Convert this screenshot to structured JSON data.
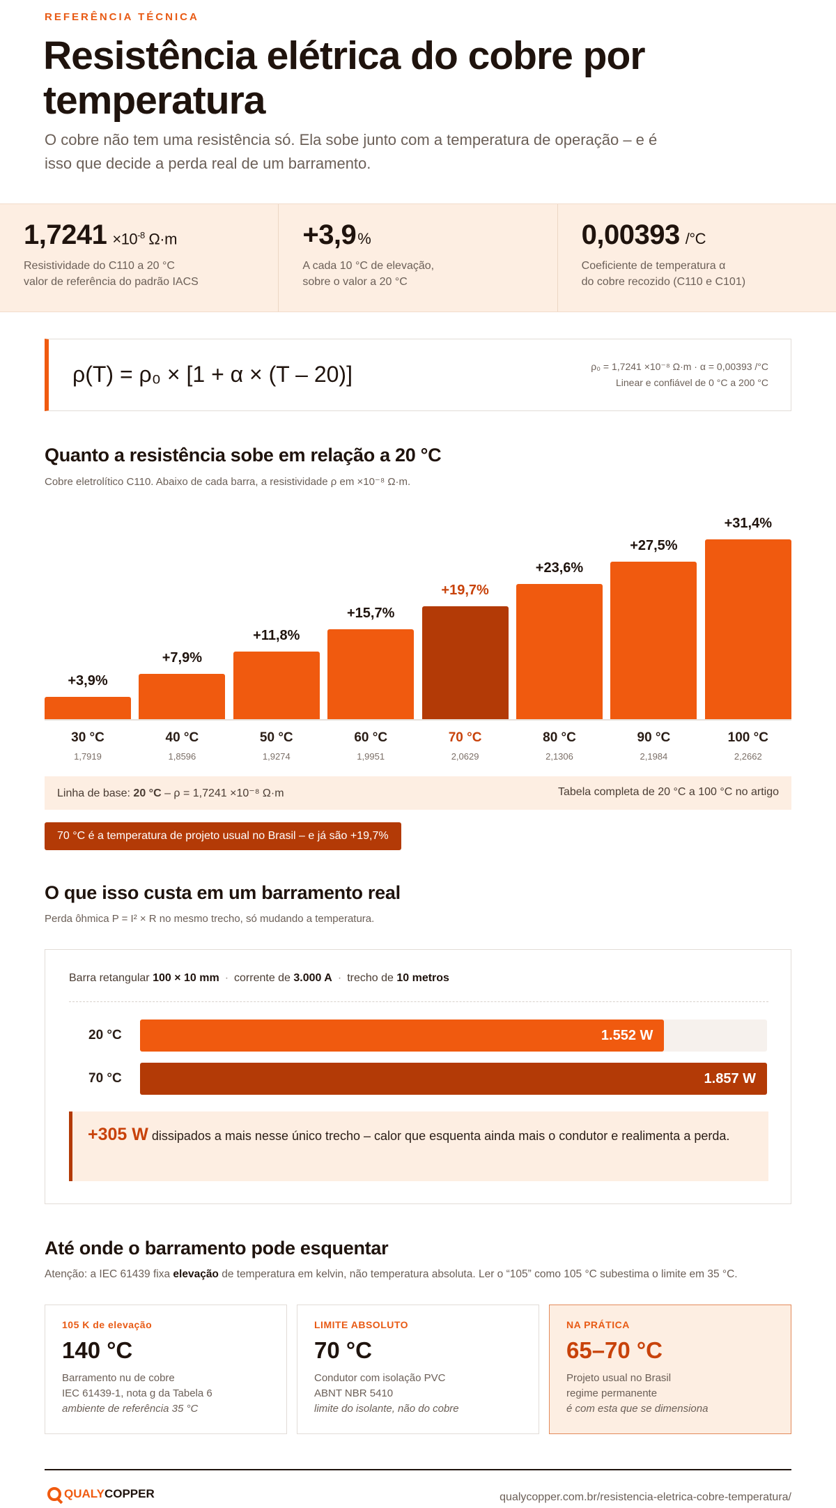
{
  "header": {
    "kicker": "REFERÊNCIA TÉCNICA",
    "title": "Resistência elétrica do cobre por temperatura",
    "subtitle": "O cobre não tem uma resistência só. Ela sobe junto com a temperatura de operação – e é isso que decide a perda real de um barramento."
  },
  "stats": [
    {
      "value": "1,7241",
      "unit_pre": "×10",
      "unit_exp": "-8",
      "unit_post": " Ω·m",
      "desc_1": "Resistividade do C110 a 20 °C",
      "desc_2": "valor de referência do padrão IACS"
    },
    {
      "value": "+3,9",
      "unit_pre": "%",
      "unit_exp": "",
      "unit_post": "",
      "desc_1": "A cada 10 °C de elevação,",
      "desc_2": "sobre o valor a 20 °C"
    },
    {
      "value": "0,00393",
      "unit_pre": "/°C",
      "unit_exp": "",
      "unit_post": "",
      "desc_1": "Coeficiente de temperatura α",
      "desc_2": "do cobre recozido (C110 e C101)"
    }
  ],
  "formula": {
    "main": "ρ(T) = ρ₀ × [1 + α × (T – 20)]",
    "note_1": "ρ₀ = 1,7241 ×10⁻⁸ Ω·m  ·  α = 0,00393 /°C",
    "note_2": "Linear e confiável de 0 °C a 200 °C"
  },
  "section_chart": {
    "title": "Quanto a resistência sobe em relação a 20 °C",
    "caption": "Cobre eletrolítico C110. Abaixo de cada barra, a resistividade ρ em ×10⁻⁸ Ω·m."
  },
  "chart_data": {
    "type": "bar",
    "categories": [
      "30 °C",
      "40 °C",
      "50 °C",
      "60 °C",
      "70 °C",
      "80 °C",
      "90 °C",
      "100 °C"
    ],
    "values": [
      3.9,
      7.9,
      11.8,
      15.7,
      19.7,
      23.6,
      27.5,
      31.4
    ],
    "value_labels": [
      "+3,9%",
      "+7,9%",
      "+11,8%",
      "+15,7%",
      "+19,7%",
      "+23,6%",
      "+27,5%",
      "+31,4%"
    ],
    "resistivity_labels": [
      "1,7919",
      "1,8596",
      "1,9274",
      "1,9951",
      "2,0629",
      "2,1306",
      "2,1984",
      "2,2662"
    ],
    "highlight_index": 4,
    "ylim": [
      0,
      31.4
    ],
    "colors": {
      "bar": "#f05a0f",
      "highlight": "#b33a06"
    }
  },
  "baseline": {
    "left_pre": "Linha de base: ",
    "left_bold": "20 °C",
    "left_post": " – ρ = 1,7241 ×10⁻⁸ Ω·m",
    "right": "Tabela completa de 20 °C a 100 °C no artigo"
  },
  "highlight_pill": "70 °C é a temperatura de projeto usual no Brasil – e já são +19,7%",
  "section_busbar": {
    "title": "O que isso custa em um barramento real",
    "caption": "Perda ôhmica P = I² × R no mesmo trecho, só mudando a temperatura.",
    "spec": {
      "p1": "Barra retangular ",
      "b1": "100 × 10 mm",
      "p2": "corrente de ",
      "b2": "3.000 A",
      "p3": "trecho de ",
      "b3": "10 metros"
    },
    "rows": [
      {
        "label": "20 °C",
        "value": "1.552 W",
        "fraction": 0.836,
        "color": "#f05a0f"
      },
      {
        "label": "70 °C",
        "value": "1.857 W",
        "fraction": 1.0,
        "color": "#b33a06"
      }
    ],
    "callout_big": "+305 W",
    "callout_text": " dissipados a mais nesse único trecho – calor que esquenta ainda mais o condutor e realimenta a perda."
  },
  "section_limits": {
    "title": "Até onde o barramento pode esquentar",
    "caption_pre": "Atenção: a IEC 61439 fixa ",
    "caption_bold": "elevação",
    "caption_post": " de temperatura em kelvin, não temperatura absoluta. Ler o “105” como 105 °C subestima o limite em 35 °C.",
    "cards": [
      {
        "tag": "105 K de elevação",
        "value": "140 °C",
        "l1": "Barramento nu de cobre",
        "l2": "IEC 61439-1, nota g da Tabela 6",
        "l3": "ambiente de referência 35 °C"
      },
      {
        "tag": "LIMITE ABSOLUTO",
        "value": "70 °C",
        "l1": "Condutor com isolação PVC",
        "l2": "ABNT NBR 5410",
        "l3": "limite do isolante, não do cobre"
      },
      {
        "tag": "NA PRÁTICA",
        "value": "65–70 °C",
        "l1": "Projeto usual no Brasil",
        "l2": "regime permanente",
        "l3": "é com esta que se dimensiona"
      }
    ]
  },
  "footer": {
    "logo_a": "QUALY",
    "logo_b": "COPPER",
    "url": "qualycopper.com.br/resistencia-eletrica-cobre-temperatura/"
  }
}
